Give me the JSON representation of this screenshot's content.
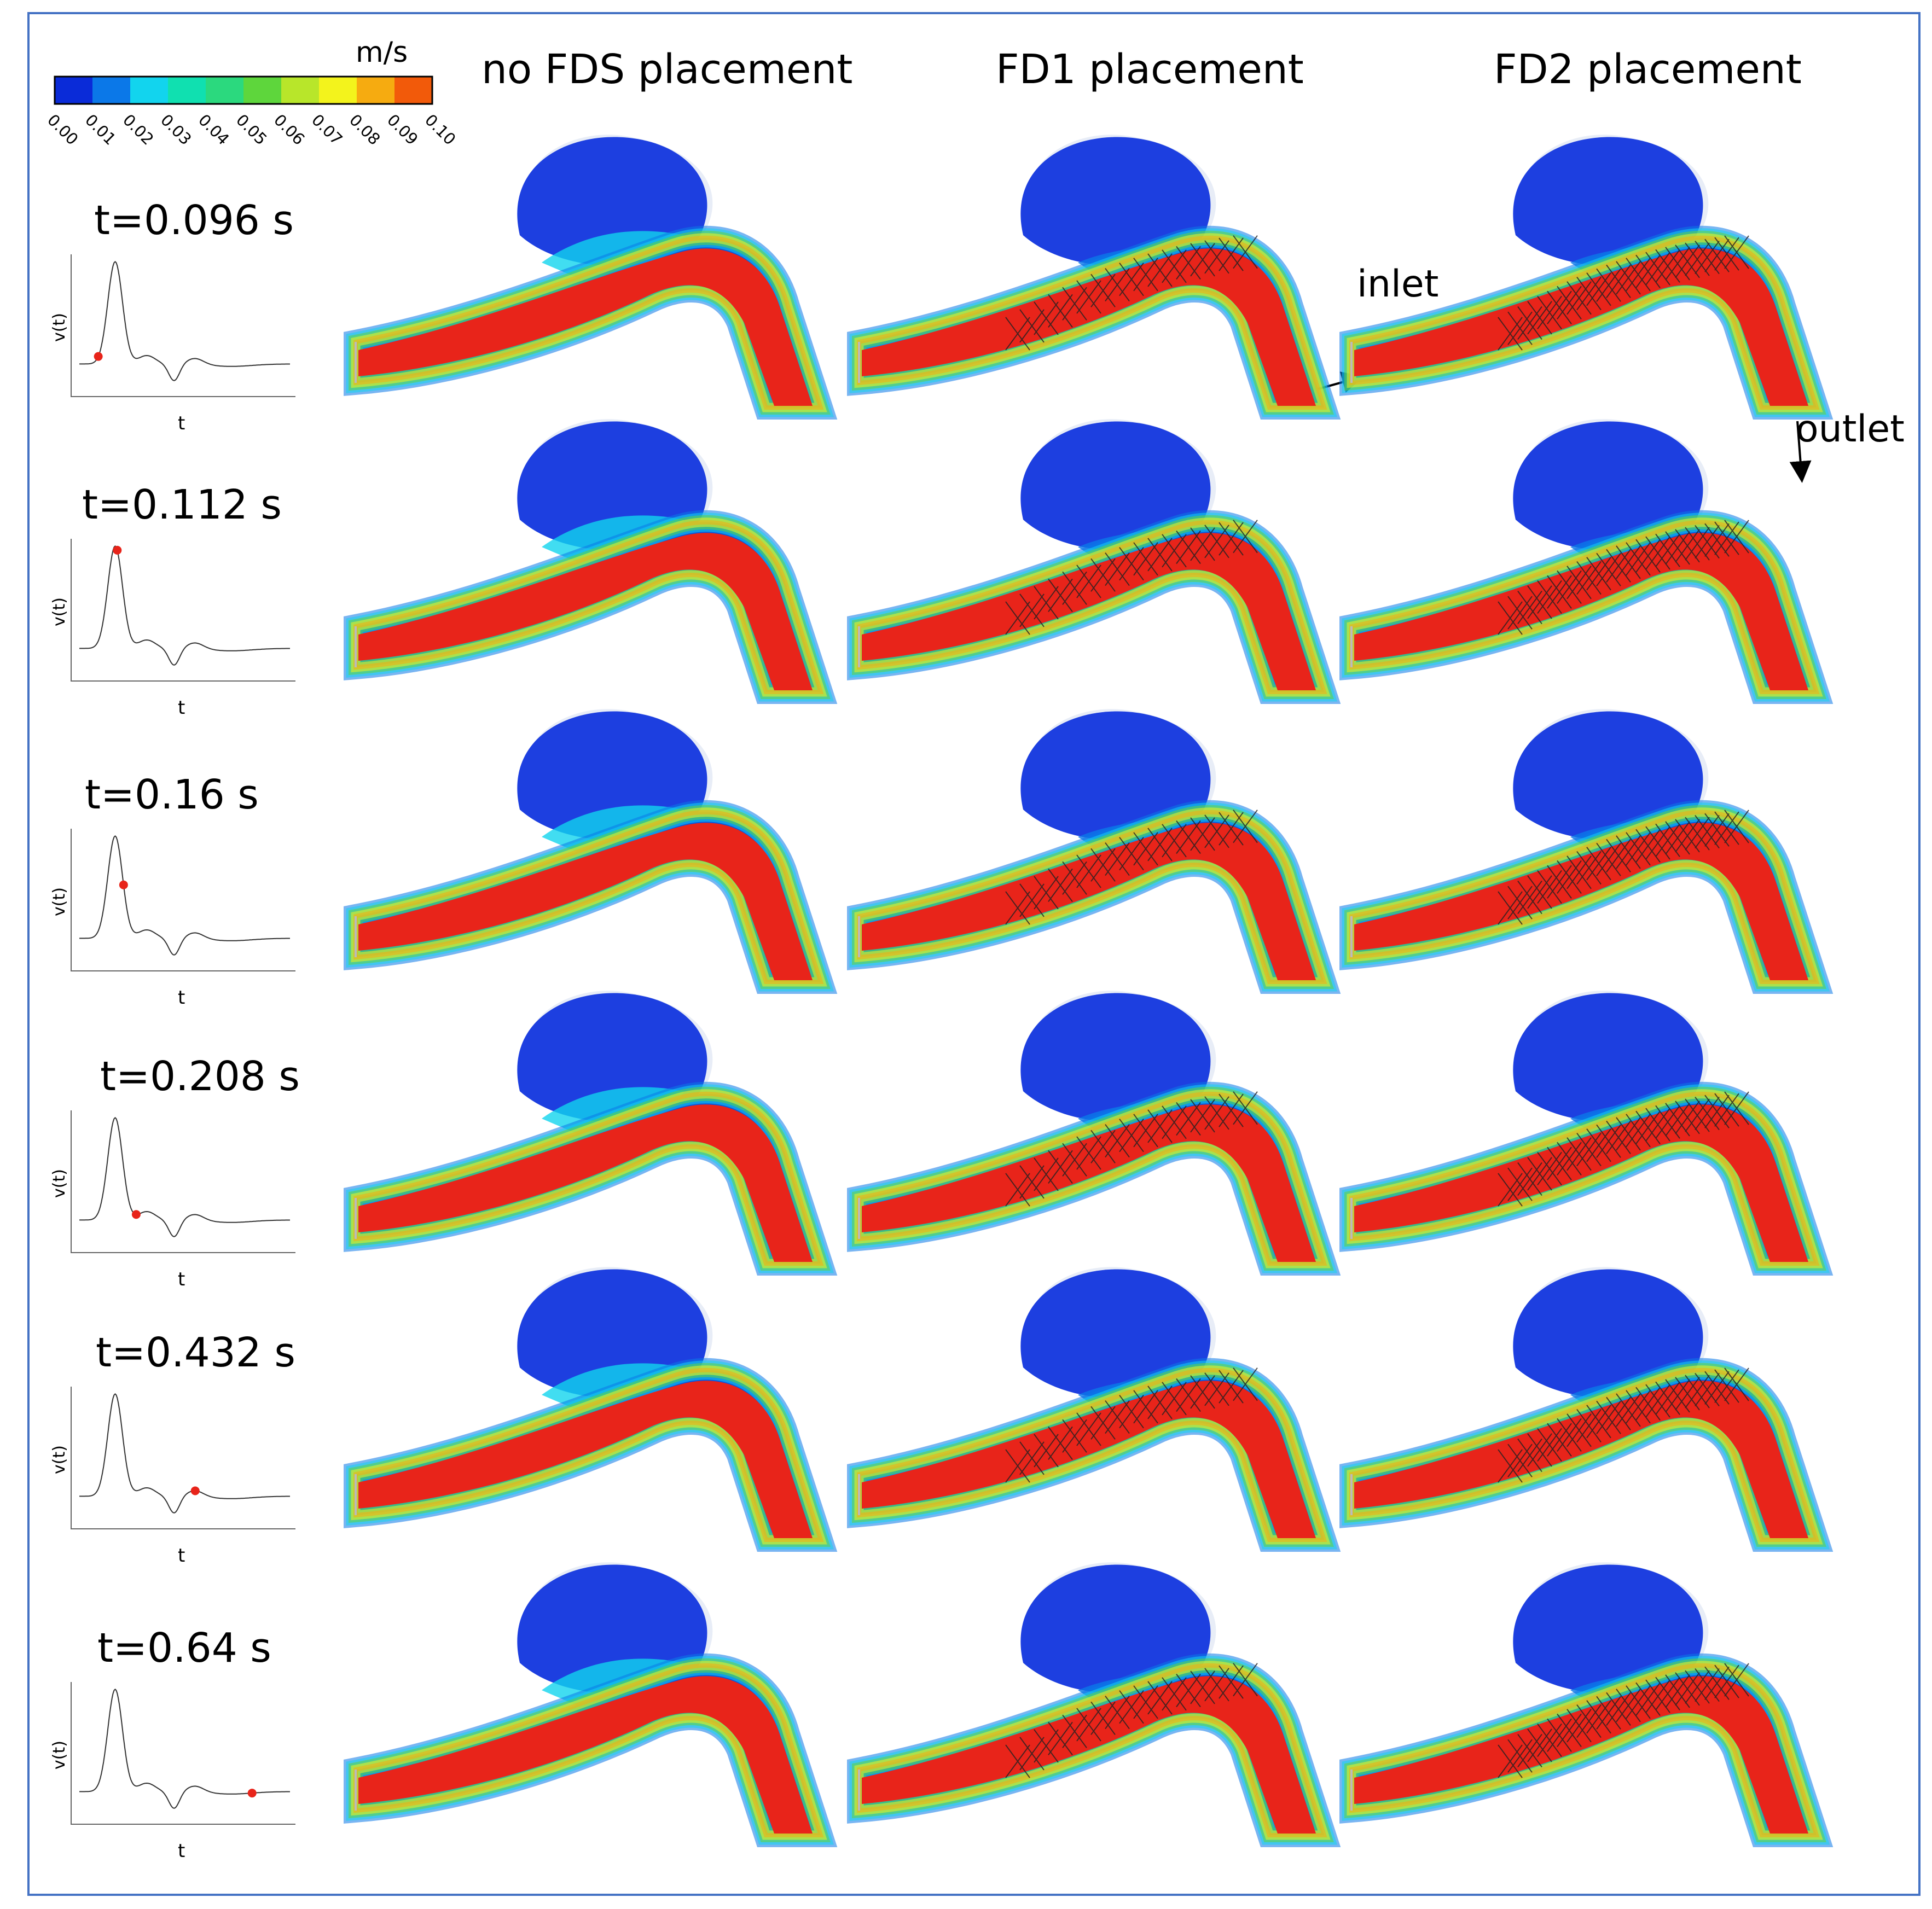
{
  "colorbar": {
    "unit": "m/s",
    "ticks": [
      "0.00",
      "0.01",
      "0.02",
      "0.03",
      "0.04",
      "0.05",
      "0.06",
      "0.07",
      "0.08",
      "0.09",
      "0.10"
    ],
    "colors": [
      "#0a2bd8",
      "#0b78e8",
      "#12d4ee",
      "#10e0b0",
      "#2bd97e",
      "#5ed63c",
      "#b8e62a",
      "#f3f31c",
      "#f6ab10",
      "#f25a0a"
    ]
  },
  "columns": [
    "no FDS placement",
    "FD1 placement",
    "FD2 placement"
  ],
  "annotations": {
    "inlet": "inlet",
    "outlet": "outlet"
  },
  "rows": [
    {
      "time": "t=0.096 s",
      "xlabel": "t",
      "ylabel": "v(t)",
      "marker_phase": 0.09
    },
    {
      "time": "t=0.112 s",
      "xlabel": "t",
      "ylabel": "v(t)",
      "marker_phase": 0.18
    },
    {
      "time": "t=0.16 s",
      "xlabel": "t",
      "ylabel": "v(t)",
      "marker_phase": 0.21
    },
    {
      "time": "t=0.208 s",
      "xlabel": "t",
      "ylabel": "v(t)",
      "marker_phase": 0.27
    },
    {
      "time": "t=0.432 s",
      "xlabel": "t",
      "ylabel": "v(t)",
      "marker_phase": 0.55
    },
    {
      "time": "t=0.64 s",
      "xlabel": "t",
      "ylabel": "v(t)",
      "marker_phase": 0.82
    }
  ]
}
